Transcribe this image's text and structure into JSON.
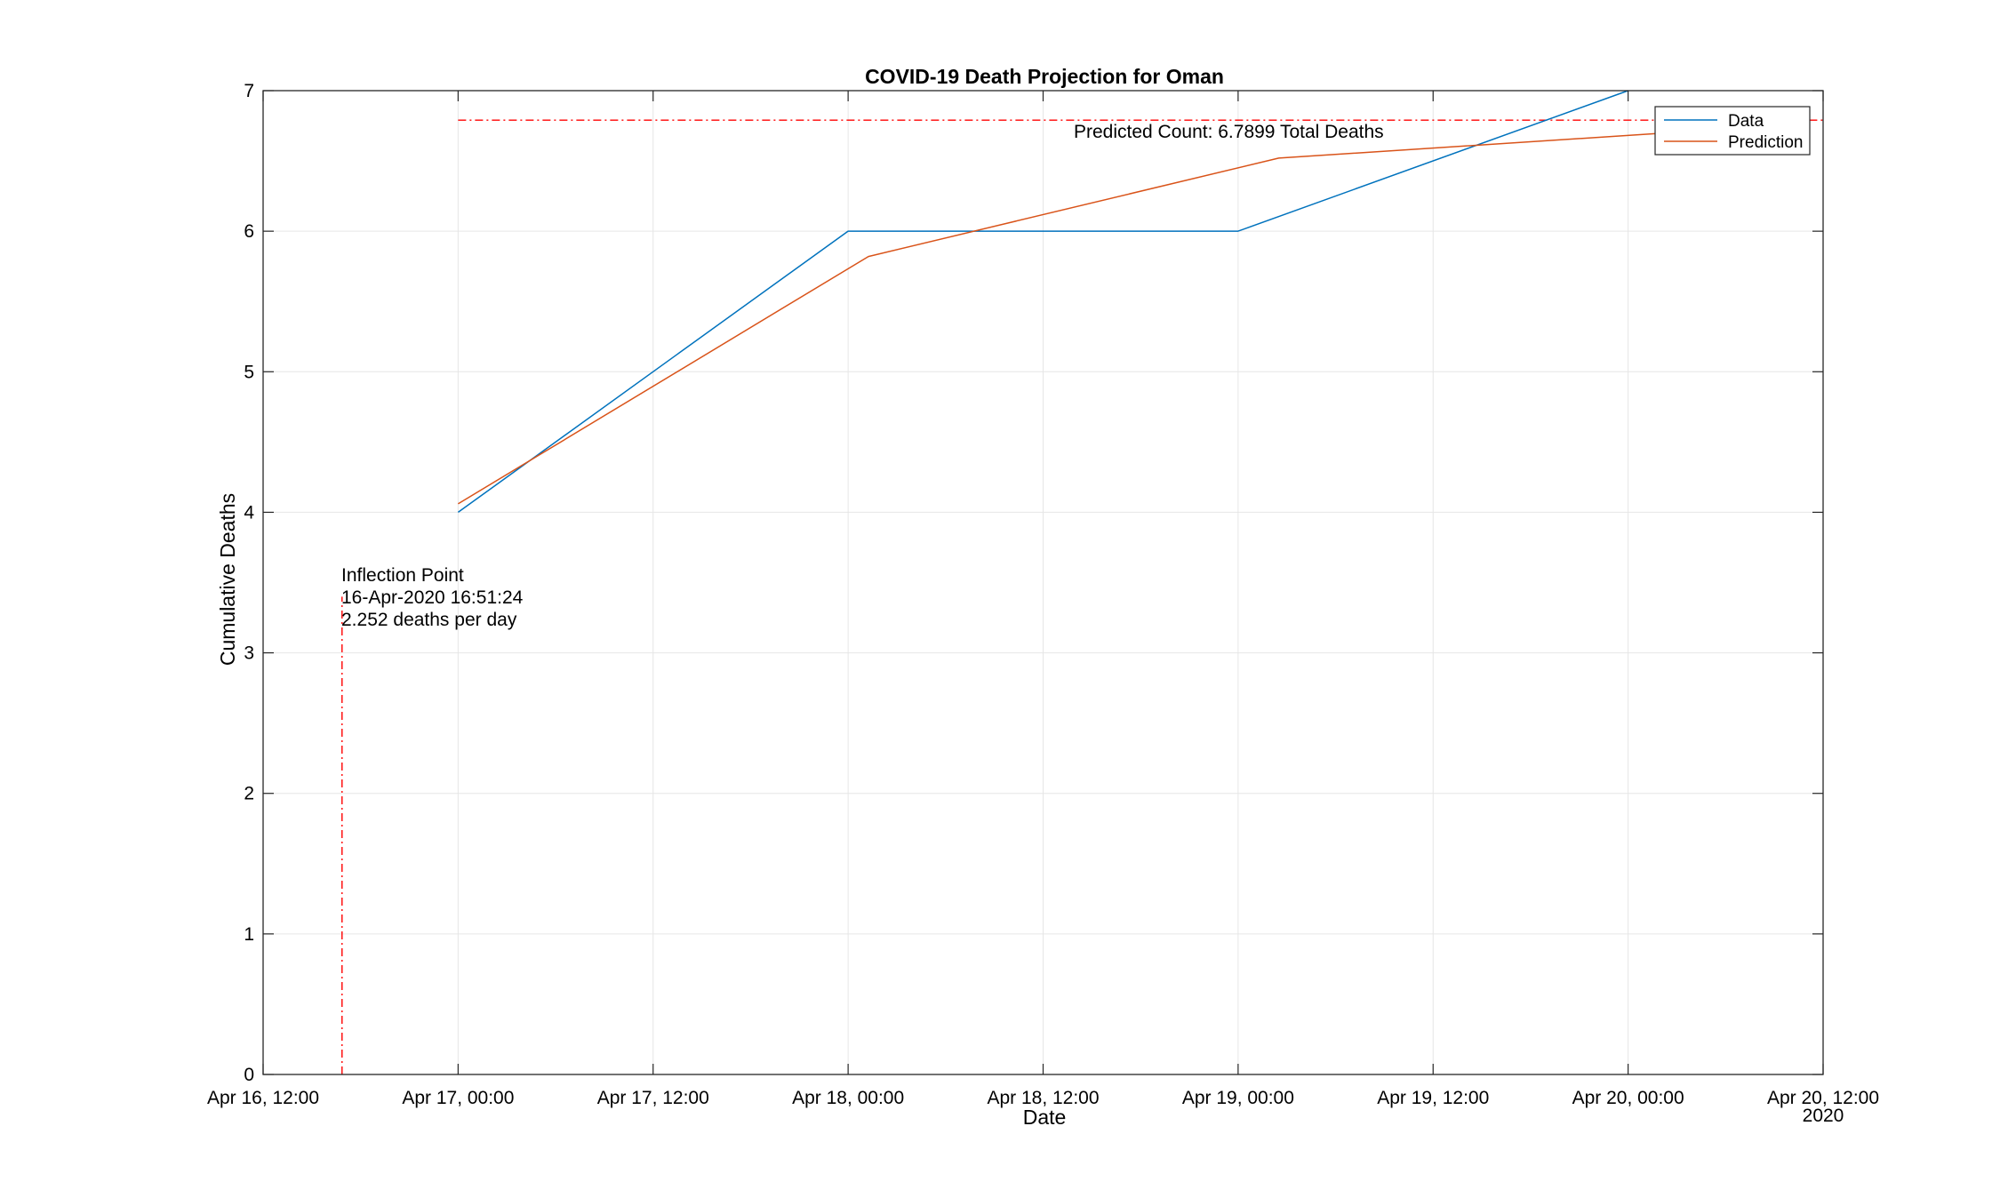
{
  "chart_data": {
    "type": "line",
    "title": "COVID-19 Death Projection for Oman",
    "xlabel": "Date",
    "ylabel": "Cumulative Deaths",
    "x_axis_kind": "datetime",
    "xlim": [
      "2020-04-16 12:00",
      "2020-04-20 12:00"
    ],
    "ylim": [
      0,
      7
    ],
    "x_ticks": [
      "2020-04-16 12:00",
      "2020-04-17 00:00",
      "2020-04-17 12:00",
      "2020-04-18 00:00",
      "2020-04-18 12:00",
      "2020-04-19 00:00",
      "2020-04-19 12:00",
      "2020-04-20 00:00",
      "2020-04-20 12:00"
    ],
    "x_tick_labels": [
      "Apr 16, 12:00",
      "Apr 17, 00:00",
      "Apr 17, 12:00",
      "Apr 18, 00:00",
      "Apr 18, 12:00",
      "Apr 19, 00:00",
      "Apr 19, 12:00",
      "Apr 20, 00:00",
      "Apr 20, 12:00"
    ],
    "x_secondary_label": "2020",
    "y_ticks": [
      0,
      1,
      2,
      3,
      4,
      5,
      6,
      7
    ],
    "grid": true,
    "legend_position": "top-right",
    "series": [
      {
        "name": "Data",
        "color": "#0072BD",
        "x": [
          "2020-04-17 00:00",
          "2020-04-18 00:00",
          "2020-04-19 00:00",
          "2020-04-20 00:00"
        ],
        "y": [
          4,
          6,
          6,
          7
        ]
      },
      {
        "name": "Prediction",
        "color": "#D95319",
        "x": [
          "2020-04-17 00:00",
          "2020-04-18 01:15",
          "2020-04-19 02:30",
          "2020-04-20 03:45"
        ],
        "y": [
          4.06,
          5.82,
          6.52,
          6.71
        ]
      }
    ],
    "reference_lines": [
      {
        "orientation": "horizontal",
        "y": 6.7899,
        "x_from": "2020-04-17 00:00",
        "x_to": "2020-04-20 12:00",
        "color": "#FF0000",
        "style": "dash-dot"
      },
      {
        "orientation": "vertical",
        "x": "2020-04-16 16:51:24",
        "y_from": 0,
        "y_to": 3.4,
        "color": "#FF0000",
        "style": "dash-dot"
      }
    ],
    "annotations": [
      {
        "id": "predicted_count",
        "text": "Predicted Count: 6.7899 Total Deaths",
        "x": "2020-04-18 12:43",
        "y": 6.67
      },
      {
        "id": "inflection",
        "lines": [
          "Inflection Point",
          "16-Apr-2020 16:51:24",
          "2.252 deaths per day"
        ],
        "x": "2020-04-16 16:51:24",
        "y": 3.54
      }
    ]
  }
}
